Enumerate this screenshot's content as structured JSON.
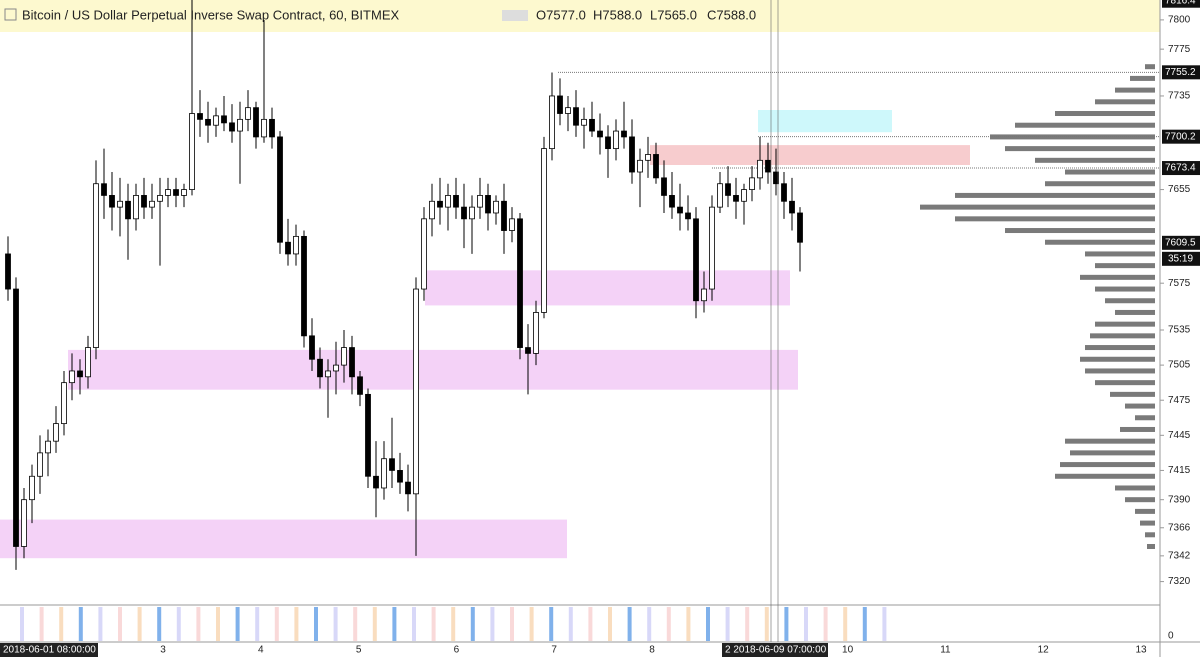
{
  "chart_data": {
    "type": "candlestick",
    "title": "Bitcoin / US Dollar Perpetual Inverse Swap Contract, 60, BITMEX",
    "ohlc_header": [
      {
        "value": 7577.0,
        "label": "O7577.0"
      },
      {
        "value": 7588.0,
        "label": "H7588.0"
      },
      {
        "value": 7565.0,
        "label": "L7565.0"
      },
      {
        "value": 7588.0,
        "label": "C7588.0"
      }
    ],
    "ylim": [
      7300,
      7817
    ],
    "yticks": [
      7320,
      7342,
      7366,
      7390,
      7415,
      7445,
      7475,
      7505,
      7535,
      7575,
      7655,
      7735,
      7775,
      7800
    ],
    "price_markers": [
      {
        "value": 7816.4,
        "label": "7816.4"
      },
      {
        "value": 7755.2,
        "label": "7755.2"
      },
      {
        "value": 7700.2,
        "label": "7700.2"
      },
      {
        "value": 7673.4,
        "label": "7673.4"
      },
      {
        "value": 7609.5,
        "label": "7609.5"
      }
    ],
    "countdown": "35:19",
    "xticks": [
      3,
      4,
      5,
      6,
      7,
      8,
      10,
      11,
      12,
      13
    ],
    "start_label": "2018-06-01 08:00:00",
    "crosshair_label": "2 2018-06-09 07:00:00",
    "volume_yticks": [
      0
    ],
    "up_color": "#ffffff",
    "down_color": "#000000",
    "candles": [
      [
        7600,
        7615,
        7560,
        7570
      ],
      [
        7570,
        7580,
        7330,
        7350
      ],
      [
        7350,
        7400,
        7340,
        7390
      ],
      [
        7390,
        7420,
        7370,
        7410
      ],
      [
        7410,
        7445,
        7395,
        7430
      ],
      [
        7430,
        7450,
        7410,
        7440
      ],
      [
        7440,
        7470,
        7430,
        7455
      ],
      [
        7455,
        7500,
        7445,
        7490
      ],
      [
        7490,
        7515,
        7475,
        7500
      ],
      [
        7500,
        7510,
        7480,
        7495
      ],
      [
        7495,
        7530,
        7485,
        7520
      ],
      [
        7520,
        7680,
        7510,
        7660
      ],
      [
        7660,
        7690,
        7630,
        7650
      ],
      [
        7650,
        7670,
        7620,
        7640
      ],
      [
        7640,
        7665,
        7615,
        7645
      ],
      [
        7645,
        7660,
        7595,
        7630
      ],
      [
        7630,
        7660,
        7620,
        7650
      ],
      [
        7650,
        7665,
        7630,
        7640
      ],
      [
        7640,
        7660,
        7630,
        7645
      ],
      [
        7645,
        7665,
        7590,
        7650
      ],
      [
        7650,
        7665,
        7640,
        7655
      ],
      [
        7655,
        7665,
        7640,
        7650
      ],
      [
        7650,
        7660,
        7640,
        7655
      ],
      [
        7655,
        7817,
        7650,
        7720
      ],
      [
        7720,
        7740,
        7700,
        7715
      ],
      [
        7715,
        7730,
        7695,
        7710
      ],
      [
        7710,
        7725,
        7700,
        7718
      ],
      [
        7718,
        7735,
        7705,
        7712
      ],
      [
        7712,
        7728,
        7695,
        7705
      ],
      [
        7705,
        7730,
        7660,
        7715
      ],
      [
        7715,
        7740,
        7705,
        7725
      ],
      [
        7725,
        7730,
        7690,
        7700
      ],
      [
        7700,
        7800,
        7695,
        7715
      ],
      [
        7715,
        7725,
        7690,
        7700
      ],
      [
        7700,
        7705,
        7600,
        7610
      ],
      [
        7610,
        7630,
        7590,
        7600
      ],
      [
        7600,
        7625,
        7590,
        7615
      ],
      [
        7615,
        7620,
        7520,
        7530
      ],
      [
        7530,
        7545,
        7500,
        7510
      ],
      [
        7510,
        7520,
        7485,
        7495
      ],
      [
        7495,
        7510,
        7460,
        7500
      ],
      [
        7500,
        7525,
        7480,
        7505
      ],
      [
        7505,
        7535,
        7490,
        7520
      ],
      [
        7520,
        7530,
        7480,
        7495
      ],
      [
        7495,
        7500,
        7470,
        7480
      ],
      [
        7480,
        7485,
        7400,
        7410
      ],
      [
        7410,
        7440,
        7375,
        7400
      ],
      [
        7400,
        7440,
        7390,
        7425
      ],
      [
        7425,
        7460,
        7400,
        7415
      ],
      [
        7415,
        7430,
        7395,
        7405
      ],
      [
        7405,
        7420,
        7380,
        7395
      ],
      [
        7395,
        7580,
        7342,
        7570
      ],
      [
        7570,
        7640,
        7560,
        7630
      ],
      [
        7630,
        7660,
        7615,
        7645
      ],
      [
        7645,
        7665,
        7625,
        7640
      ],
      [
        7640,
        7660,
        7620,
        7650
      ],
      [
        7650,
        7665,
        7630,
        7640
      ],
      [
        7640,
        7660,
        7605,
        7630
      ],
      [
        7630,
        7650,
        7600,
        7640
      ],
      [
        7640,
        7665,
        7630,
        7650
      ],
      [
        7650,
        7660,
        7620,
        7635
      ],
      [
        7635,
        7650,
        7625,
        7645
      ],
      [
        7645,
        7660,
        7600,
        7620
      ],
      [
        7620,
        7640,
        7610,
        7630
      ],
      [
        7630,
        7635,
        7510,
        7520
      ],
      [
        7520,
        7540,
        7480,
        7515
      ],
      [
        7515,
        7560,
        7505,
        7550
      ],
      [
        7550,
        7700,
        7545,
        7690
      ],
      [
        7690,
        7755,
        7680,
        7735
      ],
      [
        7735,
        7750,
        7710,
        7720
      ],
      [
        7720,
        7735,
        7705,
        7725
      ],
      [
        7725,
        7740,
        7700,
        7710
      ],
      [
        7710,
        7725,
        7690,
        7715
      ],
      [
        7715,
        7730,
        7700,
        7705
      ],
      [
        7705,
        7720,
        7685,
        7700
      ],
      [
        7700,
        7710,
        7665,
        7690
      ],
      [
        7690,
        7715,
        7680,
        7705
      ],
      [
        7705,
        7730,
        7690,
        7700
      ],
      [
        7700,
        7715,
        7660,
        7670
      ],
      [
        7670,
        7690,
        7640,
        7680
      ],
      [
        7680,
        7700,
        7665,
        7685
      ],
      [
        7685,
        7695,
        7660,
        7665
      ],
      [
        7665,
        7680,
        7635,
        7650
      ],
      [
        7650,
        7670,
        7630,
        7640
      ],
      [
        7640,
        7660,
        7620,
        7635
      ],
      [
        7635,
        7650,
        7620,
        7630
      ],
      [
        7630,
        7640,
        7545,
        7560
      ],
      [
        7560,
        7585,
        7550,
        7570
      ],
      [
        7570,
        7650,
        7560,
        7640
      ],
      [
        7640,
        7670,
        7635,
        7660
      ],
      [
        7660,
        7675,
        7640,
        7650
      ],
      [
        7650,
        7665,
        7630,
        7645
      ],
      [
        7645,
        7660,
        7625,
        7655
      ],
      [
        7655,
        7675,
        7645,
        7665
      ],
      [
        7665,
        7700,
        7655,
        7680
      ],
      [
        7680,
        7695,
        7660,
        7670
      ],
      [
        7670,
        7690,
        7650,
        7660
      ],
      [
        7660,
        7670,
        7630,
        7645
      ],
      [
        7645,
        7665,
        7620,
        7635
      ],
      [
        7635,
        7640,
        7585,
        7610
      ]
    ],
    "zones": [
      {
        "from": 7704,
        "to": 7723,
        "color": "#c9f7fb"
      },
      {
        "from": 7676,
        "to": 7693,
        "color": "#f6c6c9"
      },
      {
        "from": 7556,
        "to": 7586,
        "color": "#f3cdf6"
      },
      {
        "from": 7484,
        "to": 7518,
        "color": "#f3cdf6"
      },
      {
        "from": 7340,
        "to": 7373,
        "color": "#f3cdf6"
      }
    ],
    "volume_profile": {
      "color": "#7a7a7a",
      "prices": [
        7760,
        7750,
        7740,
        7730,
        7720,
        7710,
        7700,
        7690,
        7680,
        7670,
        7660,
        7650,
        7640,
        7630,
        7620,
        7610,
        7600,
        7590,
        7580,
        7570,
        7560,
        7550,
        7540,
        7530,
        7520,
        7510,
        7500,
        7490,
        7480,
        7470,
        7460,
        7450,
        7440,
        7430,
        7420,
        7410,
        7400,
        7390,
        7380,
        7370,
        7360,
        7350
      ],
      "values": [
        10,
        25,
        40,
        60,
        100,
        140,
        165,
        150,
        120,
        90,
        110,
        200,
        235,
        200,
        150,
        110,
        70,
        60,
        75,
        60,
        50,
        40,
        60,
        65,
        70,
        75,
        70,
        60,
        45,
        30,
        20,
        35,
        90,
        85,
        95,
        100,
        40,
        30,
        20,
        15,
        10,
        8
      ]
    }
  }
}
